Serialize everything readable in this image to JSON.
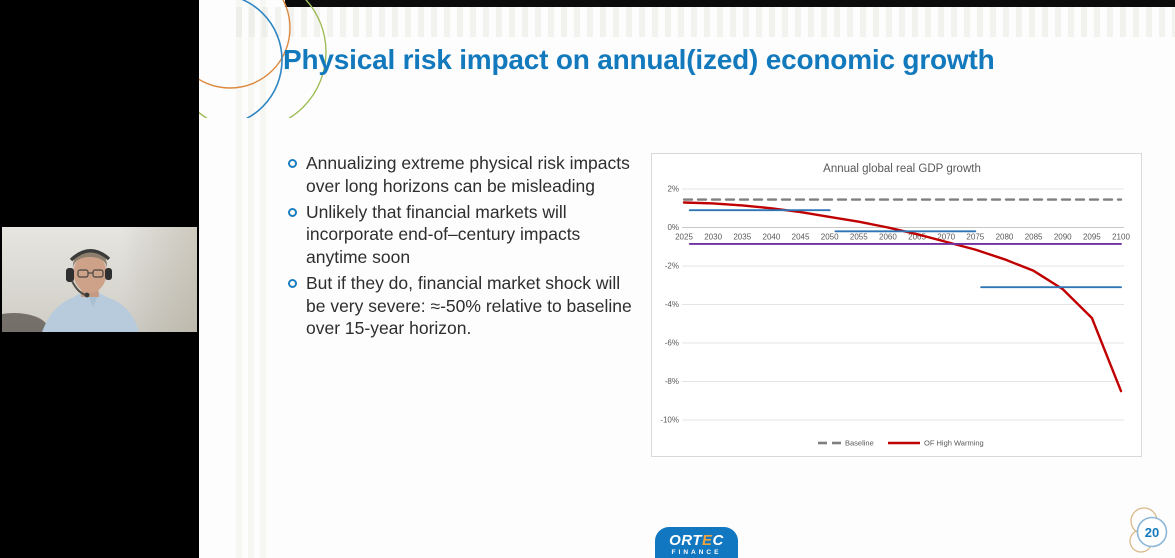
{
  "webcam": {
    "description": "Presenter webcam video: man with glasses and headset, light blue shirt, plain wall background"
  },
  "slide": {
    "title": "Physical risk impact on annual(ized) economic growth",
    "bullets": [
      "Annualizing extreme physical risk impacts over long horizons can be misleading",
      "Unlikely that financial markets will incorporate end-of–century impacts anytime soon",
      "But if they do, financial market shock will be very severe: ≈-50% relative to baseline over 15-year horizon."
    ],
    "logo": {
      "brand_prefix": "ORT",
      "brand_accent": "E",
      "brand_suffix": "C",
      "subtext": "FINANCE"
    },
    "page_number": "20"
  },
  "chart_data": {
    "type": "line",
    "title": "Annual global real GDP growth",
    "xlabel": "",
    "ylabel": "",
    "xlim": [
      2025,
      2100
    ],
    "ylim": [
      -10.8,
      2.6
    ],
    "grid": true,
    "legend_position": "bottom",
    "xticks": [
      2025,
      2030,
      2035,
      2040,
      2045,
      2050,
      2055,
      2060,
      2065,
      2070,
      2075,
      2080,
      2085,
      2090,
      2095,
      2100
    ],
    "yticks": [
      {
        "value": 2,
        "label": "2%"
      },
      {
        "value": 0,
        "label": "0%"
      },
      {
        "value": -2,
        "label": "-2%"
      },
      {
        "value": -4,
        "label": "-4%"
      },
      {
        "value": -6,
        "label": "-6%"
      },
      {
        "value": -8,
        "label": "-8%"
      },
      {
        "value": -10,
        "label": "-10%"
      }
    ],
    "series": [
      {
        "name": "Baseline",
        "color": "#7f7f7f",
        "style": "dashed",
        "in_legend": true,
        "x": [
          2025,
          2100
        ],
        "values": [
          1.45,
          1.45
        ]
      },
      {
        "name": "OF High Warming",
        "color": "#c00000",
        "style": "solid",
        "in_legend": true,
        "x": [
          2025,
          2030,
          2035,
          2040,
          2045,
          2050,
          2055,
          2060,
          2065,
          2070,
          2075,
          2080,
          2085,
          2090,
          2095,
          2100
        ],
        "values": [
          1.3,
          1.25,
          1.15,
          1.0,
          0.8,
          0.55,
          0.3,
          0.0,
          -0.35,
          -0.75,
          -1.15,
          -1.65,
          -2.25,
          -3.2,
          -4.7,
          -8.5
        ]
      },
      {
        "name": "unlabeled-blue-segment-1",
        "color": "#2e75b6",
        "style": "solid",
        "in_legend": false,
        "x": [
          2026,
          2050
        ],
        "values": [
          0.9,
          0.9
        ]
      },
      {
        "name": "unlabeled-blue-segment-2",
        "color": "#2e75b6",
        "style": "solid",
        "in_legend": false,
        "x": [
          2051,
          2075
        ],
        "values": [
          -0.2,
          -0.2
        ]
      },
      {
        "name": "unlabeled-blue-segment-3",
        "color": "#2e75b6",
        "style": "solid",
        "in_legend": false,
        "x": [
          2076,
          2100
        ],
        "values": [
          -3.1,
          -3.1
        ]
      },
      {
        "name": "unlabeled-purple-line",
        "color": "#7030a0",
        "style": "solid",
        "in_legend": false,
        "x": [
          2026,
          2100
        ],
        "values": [
          -0.85,
          -0.85
        ]
      }
    ]
  },
  "colors": {
    "title_blue": "#1379bd",
    "bullet_blue": "#1b7dc2",
    "logo_blue": "#1177c0",
    "logo_orange": "#f0a23c",
    "badge_ring_blue": "#8fb8d8",
    "badge_ring_tan": "#d9b98a",
    "chart_red": "#c00000",
    "chart_blue": "#2e75b6",
    "chart_purple": "#7030a0",
    "chart_gray": "#7f7f7f"
  }
}
